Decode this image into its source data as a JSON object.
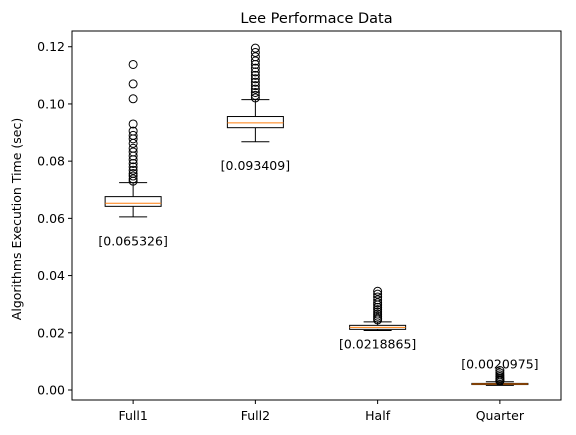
{
  "chart_data": {
    "type": "box",
    "title": "Lee Performace Data",
    "xlabel": "",
    "ylabel": "Algorithms Execution Time (sec)",
    "ylim": [
      -0.0035,
      0.1255
    ],
    "yticks": [
      0.0,
      0.02,
      0.04,
      0.06,
      0.08,
      0.1,
      0.12
    ],
    "ytick_labels": [
      "0.00",
      "0.02",
      "0.04",
      "0.06",
      "0.08",
      "0.10",
      "0.12"
    ],
    "grid": false,
    "categories": [
      "Full1",
      "Full2",
      "Half",
      "Quarter"
    ],
    "boxes": [
      {
        "category": "Full1",
        "whisker_low": 0.0605,
        "q1": 0.0642,
        "median": 0.0653,
        "q3": 0.0676,
        "whisker_high": 0.0725,
        "outliers": [
          0.1138,
          0.107,
          0.1018,
          0.093,
          0.0905,
          0.089,
          0.0878,
          0.0862,
          0.0845,
          0.0832,
          0.0818,
          0.0805,
          0.0792,
          0.078,
          0.0768,
          0.0757,
          0.0748,
          0.0738,
          0.073
        ],
        "annotation": "[0.065326]"
      },
      {
        "category": "Full2",
        "whisker_low": 0.0868,
        "q1": 0.0917,
        "median": 0.0934,
        "q3": 0.0956,
        "whisker_high": 0.1015,
        "outliers": [
          0.1195,
          0.118,
          0.1165,
          0.115,
          0.1138,
          0.1125,
          0.1112,
          0.11,
          0.1088,
          0.1076,
          0.1064,
          0.1052,
          0.104,
          0.103,
          0.1021
        ],
        "annotation": "[0.093409]"
      },
      {
        "category": "Half",
        "whisker_low": 0.0208,
        "q1": 0.0212,
        "median": 0.0219,
        "q3": 0.0226,
        "whisker_high": 0.0238,
        "outliers": [
          0.0345,
          0.0335,
          0.0325,
          0.0315,
          0.0305,
          0.0297,
          0.0289,
          0.0281,
          0.0273,
          0.0265,
          0.0258,
          0.0251,
          0.0245
        ],
        "annotation": "[0.0218865]"
      },
      {
        "category": "Quarter",
        "whisker_low": 0.0016,
        "q1": 0.0019,
        "median": 0.0021,
        "q3": 0.0023,
        "whisker_high": 0.0029,
        "outliers": [
          0.0068,
          0.006,
          0.0053,
          0.0047,
          0.0042,
          0.0038,
          0.0034,
          0.0031
        ],
        "annotation": "[0.0020975]"
      }
    ],
    "annotation_values": [
      0.052,
      0.0785,
      0.016,
      0.009
    ],
    "colors": {
      "box": "#000000",
      "median": "#ff7f0e",
      "outlier_edge": "#000000",
      "background": "#ffffff"
    }
  }
}
